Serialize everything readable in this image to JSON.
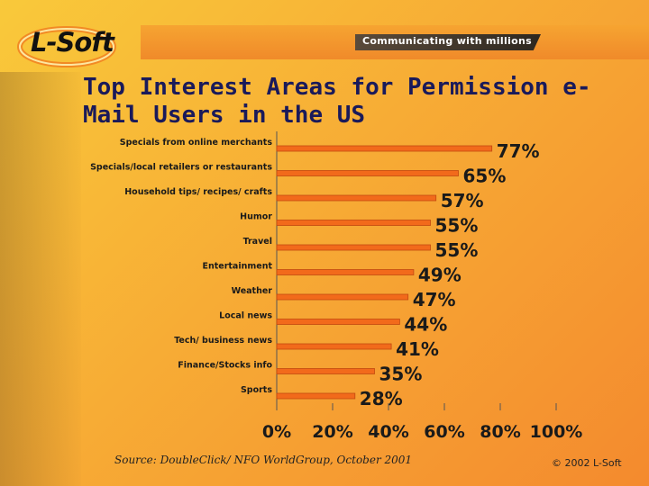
{
  "header": {
    "logo": "L-Soft",
    "tagline": "Communicating with millions"
  },
  "slide": {
    "title": "Top Interest Areas for Permission e-Mail Users in the US"
  },
  "footer": {
    "source": "Source: DoubleClick/ NFO WorldGroup, October 2001",
    "copyright": "© 2002 L-Soft"
  },
  "chart_data": {
    "type": "bar",
    "orientation": "horizontal",
    "categories": [
      "Specials from online merchants",
      "Specials/local retailers or restaurants",
      "Household tips/ recipes/ crafts",
      "Humor",
      "Travel",
      "Entertainment",
      "Weather",
      "Local news",
      "Tech/ business news",
      "Finance/Stocks info",
      "Sports"
    ],
    "values": [
      77,
      65,
      57,
      55,
      55,
      49,
      47,
      44,
      41,
      35,
      28
    ],
    "data_labels": [
      "77%",
      "65%",
      "57%",
      "55%",
      "55%",
      "49%",
      "47%",
      "44%",
      "41%",
      "35%",
      "28%"
    ],
    "x_ticks": [
      "0%",
      "20%",
      "40%",
      "60%",
      "80%",
      "100%"
    ],
    "xlim": [
      0,
      100
    ],
    "grid": false,
    "bar_color": "#f26a1b",
    "bar_edge_color": "#c24a10"
  }
}
